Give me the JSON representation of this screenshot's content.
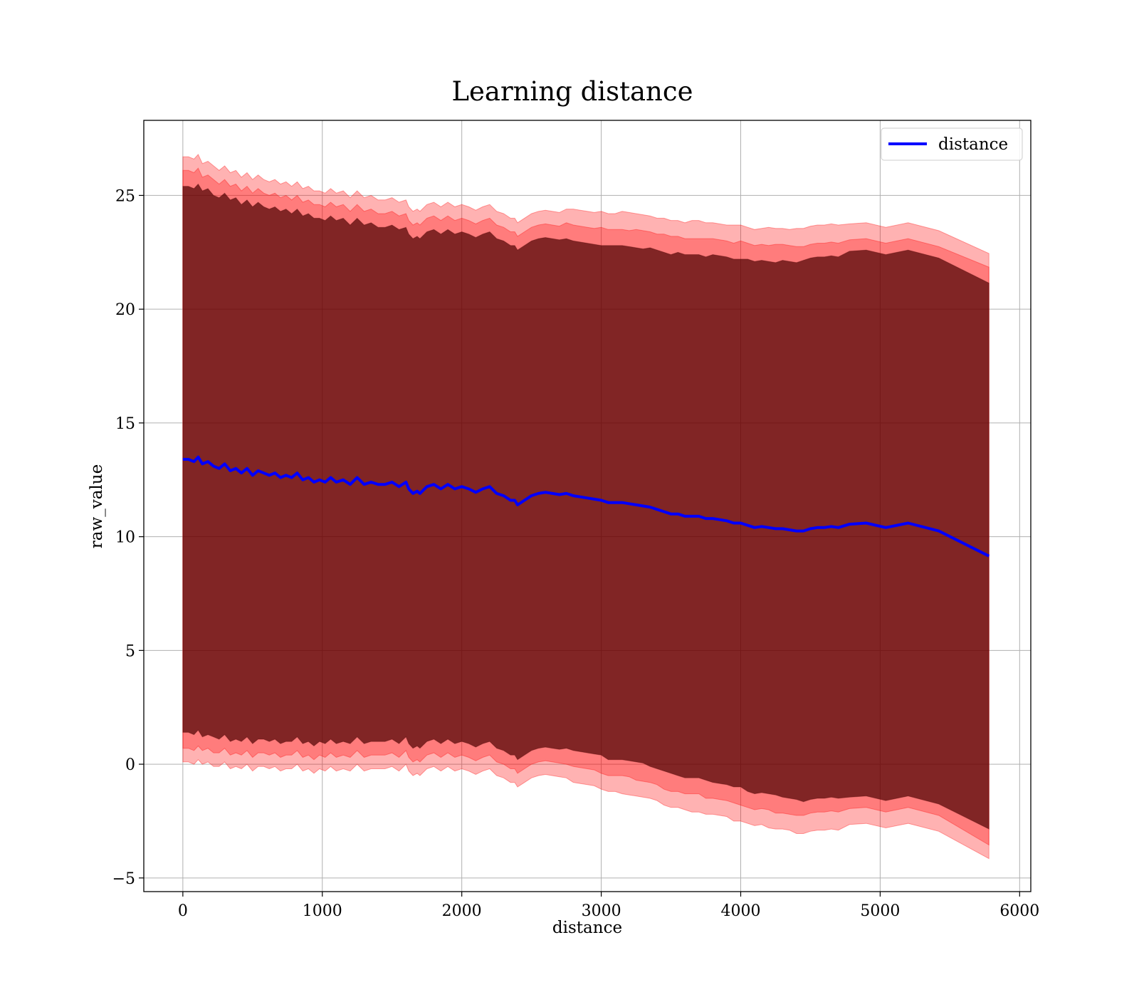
{
  "chart_data": {
    "type": "line",
    "title": "Learning distance",
    "xlabel": "distance",
    "ylabel": "raw_value",
    "xlim": [
      -280,
      6080
    ],
    "ylim": [
      -5.6,
      28.3
    ],
    "xticks": [
      0,
      1000,
      2000,
      3000,
      4000,
      5000,
      6000
    ],
    "yticks": [
      -5,
      0,
      5,
      10,
      15,
      20,
      25
    ],
    "grid": true,
    "legend": {
      "position": "top-right",
      "entries": [
        "distance"
      ]
    },
    "colors": {
      "line": "#0000ff",
      "band_fill": "#ff0000",
      "band_dark": "#4c0000",
      "grid": "#b0b0b0"
    },
    "series": [
      {
        "name": "distance",
        "x": [
          0,
          40,
          80,
          110,
          140,
          180,
          220,
          260,
          300,
          340,
          380,
          420,
          460,
          500,
          540,
          580,
          620,
          660,
          700,
          740,
          780,
          820,
          860,
          900,
          940,
          980,
          1020,
          1060,
          1100,
          1150,
          1200,
          1250,
          1300,
          1350,
          1400,
          1450,
          1500,
          1550,
          1600,
          1620,
          1650,
          1680,
          1700,
          1750,
          1800,
          1850,
          1900,
          1950,
          2000,
          2050,
          2100,
          2150,
          2200,
          2250,
          2300,
          2350,
          2380,
          2400,
          2450,
          2500,
          2550,
          2600,
          2650,
          2700,
          2750,
          2800,
          2850,
          2900,
          2950,
          3000,
          3050,
          3100,
          3150,
          3200,
          3250,
          3300,
          3350,
          3400,
          3450,
          3500,
          3550,
          3600,
          3650,
          3700,
          3750,
          3800,
          3850,
          3900,
          3950,
          4000,
          4050,
          4100,
          4150,
          4200,
          4250,
          4300,
          4350,
          4400,
          4450,
          4500,
          4550,
          4600,
          4650,
          4700,
          4780,
          4900,
          5040,
          5200,
          5420,
          5780
        ],
        "y": [
          13.4,
          13.4,
          13.3,
          13.5,
          13.2,
          13.3,
          13.1,
          13.0,
          13.2,
          12.9,
          13.0,
          12.8,
          13.0,
          12.7,
          12.9,
          12.8,
          12.7,
          12.8,
          12.6,
          12.7,
          12.6,
          12.8,
          12.5,
          12.6,
          12.4,
          12.5,
          12.4,
          12.6,
          12.4,
          12.5,
          12.3,
          12.6,
          12.3,
          12.4,
          12.3,
          12.3,
          12.4,
          12.2,
          12.4,
          12.1,
          11.9,
          12.0,
          11.9,
          12.2,
          12.3,
          12.1,
          12.3,
          12.1,
          12.2,
          12.1,
          11.95,
          12.1,
          12.2,
          11.9,
          11.8,
          11.6,
          11.6,
          11.4,
          11.6,
          11.8,
          11.9,
          11.95,
          11.9,
          11.85,
          11.9,
          11.8,
          11.75,
          11.7,
          11.65,
          11.6,
          11.5,
          11.5,
          11.5,
          11.45,
          11.4,
          11.35,
          11.3,
          11.2,
          11.1,
          11.0,
          11.0,
          10.9,
          10.9,
          10.9,
          10.8,
          10.8,
          10.75,
          10.7,
          10.6,
          10.6,
          10.5,
          10.4,
          10.45,
          10.4,
          10.35,
          10.35,
          10.3,
          10.25,
          10.25,
          10.35,
          10.4,
          10.4,
          10.45,
          10.4,
          10.55,
          10.6,
          10.4,
          10.6,
          10.25,
          9.15
        ]
      }
    ],
    "bands": [
      {
        "label": "outer",
        "opacity": 0.3,
        "offset": [
          13.3,
          13.3,
          13.3,
          13.3,
          13.2,
          13.2,
          13.2,
          13.1,
          13.1,
          13.1,
          13.1,
          13.0,
          13.0,
          13.0,
          13.0,
          12.9,
          12.9,
          12.9,
          12.9,
          12.9,
          12.8,
          12.8,
          12.8,
          12.8,
          12.8,
          12.7,
          12.7,
          12.7,
          12.7,
          12.7,
          12.6,
          12.6,
          12.6,
          12.6,
          12.5,
          12.5,
          12.5,
          12.5,
          12.4,
          12.4,
          12.4,
          12.4,
          12.4,
          12.4,
          12.4,
          12.4,
          12.4,
          12.4,
          12.4,
          12.4,
          12.4,
          12.4,
          12.4,
          12.4,
          12.4,
          12.4,
          12.4,
          12.4,
          12.4,
          12.4,
          12.4,
          12.4,
          12.4,
          12.4,
          12.5,
          12.6,
          12.6,
          12.6,
          12.6,
          12.7,
          12.7,
          12.7,
          12.8,
          12.8,
          12.8,
          12.8,
          12.8,
          12.8,
          12.9,
          12.9,
          12.9,
          12.9,
          13.0,
          13.0,
          13.0,
          13.0,
          13.0,
          13.0,
          13.1,
          13.1,
          13.1,
          13.1,
          13.1,
          13.2,
          13.2,
          13.2,
          13.2,
          13.3,
          13.3,
          13.3,
          13.3,
          13.3,
          13.3,
          13.3,
          13.2,
          13.2,
          13.2,
          13.2,
          13.2,
          13.3
        ]
      },
      {
        "label": "middle",
        "opacity": 0.3,
        "offset": [
          12.7,
          12.7,
          12.7,
          12.7,
          12.6,
          12.6,
          12.6,
          12.5,
          12.5,
          12.5,
          12.5,
          12.4,
          12.4,
          12.4,
          12.4,
          12.3,
          12.3,
          12.3,
          12.3,
          12.3,
          12.2,
          12.2,
          12.2,
          12.2,
          12.2,
          12.1,
          12.1,
          12.1,
          12.1,
          12.1,
          12.0,
          12.0,
          12.0,
          12.0,
          11.9,
          11.9,
          11.9,
          11.9,
          11.8,
          11.8,
          11.8,
          11.8,
          11.8,
          11.8,
          11.8,
          11.8,
          11.8,
          11.8,
          11.8,
          11.8,
          11.8,
          11.8,
          11.8,
          11.8,
          11.8,
          11.8,
          11.8,
          11.8,
          11.8,
          11.8,
          11.8,
          11.8,
          11.8,
          11.8,
          11.9,
          11.9,
          11.9,
          11.9,
          11.9,
          12.0,
          12.0,
          12.0,
          12.0,
          12.0,
          12.1,
          12.1,
          12.1,
          12.1,
          12.2,
          12.2,
          12.2,
          12.2,
          12.2,
          12.2,
          12.3,
          12.3,
          12.3,
          12.3,
          12.3,
          12.4,
          12.4,
          12.4,
          12.4,
          12.4,
          12.5,
          12.5,
          12.5,
          12.5,
          12.5,
          12.5,
          12.5,
          12.5,
          12.5,
          12.5,
          12.5,
          12.5,
          12.5,
          12.5,
          12.5,
          12.7
        ]
      },
      {
        "label": "inner",
        "opacity": 0.7,
        "offset": [
          12.0,
          12.0,
          12.0,
          12.0,
          12.0,
          12.0,
          11.9,
          11.9,
          11.9,
          11.9,
          11.9,
          11.8,
          11.8,
          11.8,
          11.8,
          11.7,
          11.7,
          11.7,
          11.7,
          11.7,
          11.6,
          11.6,
          11.6,
          11.6,
          11.6,
          11.5,
          11.5,
          11.5,
          11.5,
          11.5,
          11.4,
          11.4,
          11.4,
          11.4,
          11.3,
          11.3,
          11.3,
          11.3,
          11.2,
          11.2,
          11.2,
          11.2,
          11.2,
          11.2,
          11.2,
          11.2,
          11.2,
          11.2,
          11.2,
          11.2,
          11.2,
          11.2,
          11.2,
          11.2,
          11.2,
          11.2,
          11.2,
          11.2,
          11.2,
          11.2,
          11.2,
          11.2,
          11.2,
          11.2,
          11.2,
          11.2,
          11.2,
          11.2,
          11.2,
          11.2,
          11.3,
          11.3,
          11.3,
          11.3,
          11.3,
          11.3,
          11.4,
          11.4,
          11.4,
          11.4,
          11.5,
          11.5,
          11.5,
          11.5,
          11.5,
          11.6,
          11.6,
          11.6,
          11.6,
          11.6,
          11.7,
          11.7,
          11.7,
          11.7,
          11.7,
          11.8,
          11.8,
          11.8,
          11.9,
          11.9,
          11.9,
          11.9,
          11.9,
          11.9,
          12.0,
          12.0,
          12.0,
          12.0,
          12.0,
          12.0
        ]
      }
    ]
  }
}
